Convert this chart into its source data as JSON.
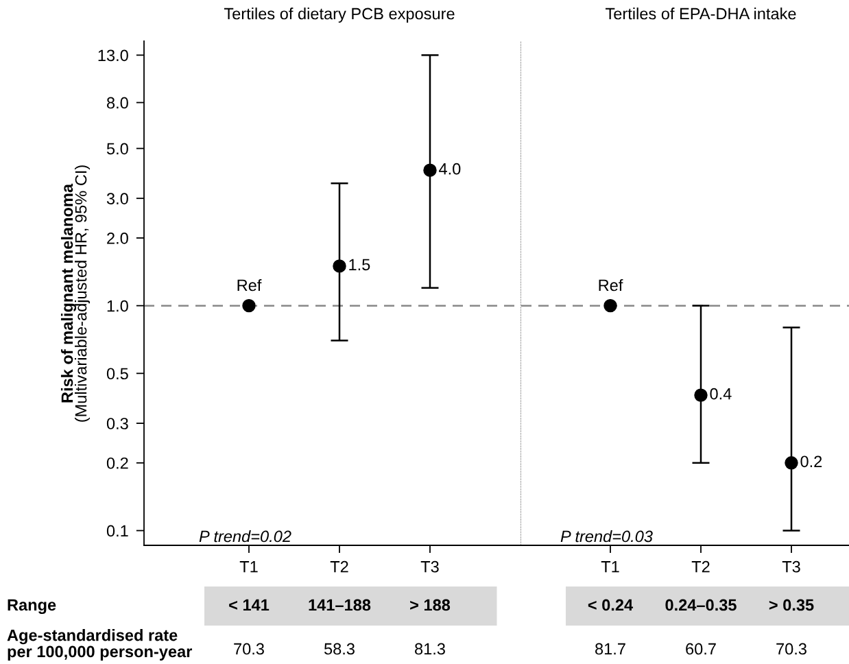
{
  "chart_data": [
    {
      "type": "scatter",
      "title": "Tertiles of dietary PCB exposure",
      "ylabel": "Risk of malignant melanoma\n(Multivariable-adjusted HR, 95% CI)",
      "categories": [
        "T1",
        "T2",
        "T3"
      ],
      "values": [
        1.0,
        1.5,
        4.0
      ],
      "color": "#000000",
      "errors": [
        null,
        [
          0.7,
          3.5
        ],
        [
          1.2,
          13.0
        ]
      ],
      "value_labels": [
        "Ref",
        "1.5",
        "4.0"
      ],
      "log": true,
      "ylim": [
        0.086,
        15
      ],
      "yticks": [
        0.1,
        {
          "value": 0.2,
          "label": "0.2"
        },
        {
          "value": 0.3,
          "label": "0.3"
        },
        {
          "value": 0.5,
          "label": "0.5"
        },
        {
          "value": 1,
          "label": "1.0"
        },
        {
          "value": 2,
          "label": "2.0"
        },
        {
          "value": 3,
          "label": "3.0"
        },
        {
          "value": 5,
          "label": "5.0"
        },
        {
          "value": 8,
          "label": "8.0"
        },
        {
          "value": 13,
          "label": "13.0"
        }
      ],
      "ref_lines": [
        {
          "axis": "y",
          "value": 1.0,
          "color": "#888888",
          "line_style": "dashed"
        }
      ],
      "marker": "circle",
      "grid": false,
      "annotations": [
        "P trend=0.02",
        "Range",
        "Age-standardised rate\nper 100,000 person-year",
        "< 141",
        "141–188",
        "> 188",
        "70.3",
        "58.3",
        "81.3"
      ]
    },
    {
      "type": "scatter",
      "title": "Tertiles of EPA-DHA intake",
      "categories": [
        "T1",
        "T2",
        "T3"
      ],
      "values": [
        1.0,
        0.4,
        0.2
      ],
      "color": "#000000",
      "errors": [
        null,
        [
          0.2,
          1.0
        ],
        [
          0.1,
          0.8
        ]
      ],
      "value_labels": [
        "Ref",
        "0.4",
        "0.2"
      ],
      "log": true,
      "ylim": [
        0.086,
        15
      ],
      "tick_labels": "x",
      "ref_lines": [
        {
          "axis": "y",
          "value": 1.0,
          "color": "#888888",
          "line_style": "dashed"
        }
      ],
      "marker": "circle",
      "grid": false,
      "annotations": [
        "P trend=0.03",
        "< 0.24",
        "0.24–0.35",
        "> 0.35",
        "81.7",
        "60.7",
        "70.3"
      ]
    }
  ]
}
